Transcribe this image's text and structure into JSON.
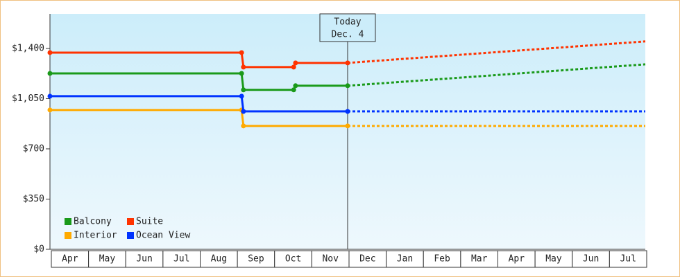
{
  "chart_data": {
    "type": "line",
    "categories": [
      "Apr",
      "May",
      "Jun",
      "Jul",
      "Aug",
      "Sep",
      "Oct",
      "Nov",
      "Dec",
      "Jan",
      "Feb",
      "Mar",
      "Apr",
      "May",
      "Jun",
      "Jul"
    ],
    "xlim": [
      0,
      16
    ],
    "ylim": [
      0,
      1641
    ],
    "yticks": [
      {
        "value": 0,
        "label": "$0"
      },
      {
        "value": 350,
        "label": "$350"
      },
      {
        "value": 700,
        "label": "$700"
      },
      {
        "value": 1050,
        "label": "$1,050"
      },
      {
        "value": 1400,
        "label": "$1,400"
      }
    ],
    "today": {
      "x": 8,
      "title": "Today",
      "date": "Dec. 4"
    },
    "legend": "lower-left",
    "series": [
      {
        "name": "Balcony",
        "color": "#1a9a1a",
        "x": [
          0,
          5.15,
          5.2,
          6.55,
          6.6,
          8,
          16
        ],
        "values": [
          1226,
          1226,
          1111,
          1111,
          1140,
          1140,
          1289
        ]
      },
      {
        "name": "Suite",
        "color": "#ff3300",
        "x": [
          0,
          5.15,
          5.2,
          6.55,
          6.6,
          8,
          16
        ],
        "values": [
          1371,
          1371,
          1270,
          1270,
          1299,
          1299,
          1449
        ]
      },
      {
        "name": "Interior",
        "color": "#ffaa00",
        "x": [
          0,
          5.15,
          5.2,
          8,
          16
        ],
        "values": [
          971,
          971,
          860,
          860,
          860
        ]
      },
      {
        "name": "Ocean View",
        "color": "#0033ff",
        "x": [
          0,
          5.15,
          5.2,
          8,
          16
        ],
        "values": [
          1067,
          1067,
          961,
          961,
          961
        ]
      }
    ]
  }
}
